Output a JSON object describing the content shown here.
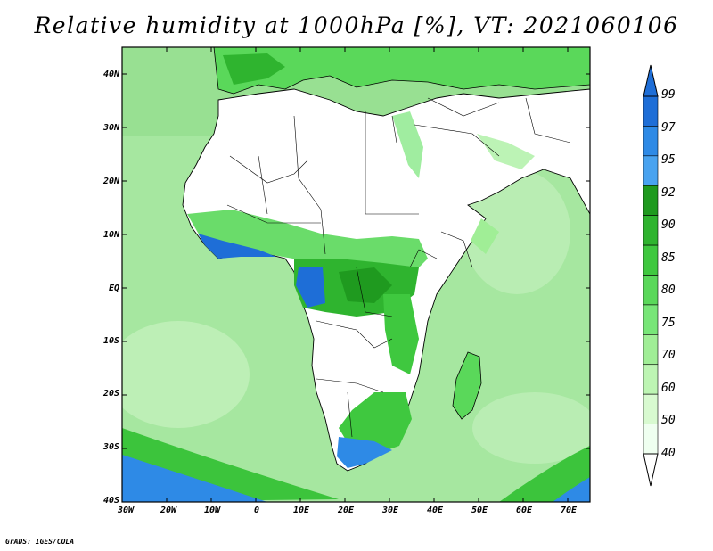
{
  "title": "Relative humidity at 1000hPa [%], VT: 2021060106",
  "credit": "GrADS: IGES/COLA",
  "map": {
    "lat_labels": [
      "40N",
      "30N",
      "20N",
      "10N",
      "EQ",
      "10S",
      "20S",
      "30S",
      "40S"
    ],
    "lon_labels": [
      "30W",
      "20W",
      "10W",
      "0",
      "10E",
      "20E",
      "30E",
      "40E",
      "50E",
      "60E",
      "70E"
    ],
    "ocean_color": "#a6e7a0",
    "land_dry_color": "#ffffff",
    "coastline_color": "#000000"
  },
  "colorbar": {
    "levels": [
      "99",
      "97",
      "95",
      "92",
      "90",
      "85",
      "80",
      "75",
      "70",
      "60",
      "50",
      "40"
    ],
    "colors": [
      "#1e6ed7",
      "#2e8ae6",
      "#49a3f0",
      "#1f9a1f",
      "#2fb42f",
      "#3fc83f",
      "#5ad85a",
      "#78e678",
      "#a0ee96",
      "#bdf5b3",
      "#d8fad0",
      "#effff0"
    ],
    "top_color": "#1e6ed7",
    "bottom_color": "#ffffff"
  }
}
